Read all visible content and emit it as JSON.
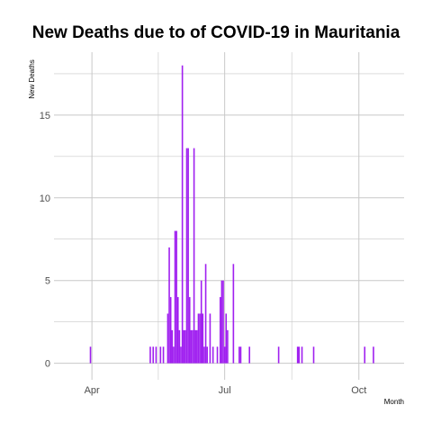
{
  "chart_data": {
    "type": "bar",
    "title": "New Deaths due to of COVID-19 in Mauritania",
    "xlabel": "Month",
    "ylabel": "New  Deaths",
    "x_ticks": [
      {
        "date": "2020-04-01",
        "label": "Apr"
      },
      {
        "date": "2020-07-01",
        "label": "Jul"
      },
      {
        "date": "2020-10-01",
        "label": "Oct"
      }
    ],
    "y_ticks": [
      0,
      5,
      10,
      15
    ],
    "xlim": [
      "2020-03-06",
      "2020-11-01"
    ],
    "ylim": [
      -1,
      18.8
    ],
    "grid": true,
    "bar_color": "#a020f0",
    "grid_color": "#c8c8c8",
    "series": [
      {
        "x": [
          "2020-03-31",
          "2020-05-11",
          "2020-05-13",
          "2020-05-15",
          "2020-05-18",
          "2020-05-20",
          "2020-05-23",
          "2020-05-24",
          "2020-05-25",
          "2020-05-26",
          "2020-05-27",
          "2020-05-28",
          "2020-05-29",
          "2020-05-30",
          "2020-05-31",
          "2020-06-01",
          "2020-06-02",
          "2020-06-03",
          "2020-06-04",
          "2020-06-05",
          "2020-06-06",
          "2020-06-07",
          "2020-06-08",
          "2020-06-09",
          "2020-06-10",
          "2020-06-11",
          "2020-06-12",
          "2020-06-13",
          "2020-06-14",
          "2020-06-15",
          "2020-06-16",
          "2020-06-17",
          "2020-06-18",
          "2020-06-19",
          "2020-06-21",
          "2020-06-23",
          "2020-06-26",
          "2020-06-28",
          "2020-06-29",
          "2020-06-30",
          "2020-07-01",
          "2020-07-02",
          "2020-07-03",
          "2020-07-07",
          "2020-07-11",
          "2020-07-12",
          "2020-07-18",
          "2020-08-07",
          "2020-08-20",
          "2020-08-21",
          "2020-08-23",
          "2020-08-31",
          "2020-10-05",
          "2020-10-11"
        ],
        "values": [
          1,
          1,
          1,
          1,
          1,
          1,
          3,
          7,
          4,
          2,
          1,
          8,
          8,
          4,
          2,
          1,
          18,
          2,
          2,
          13,
          13,
          4,
          2,
          2,
          13,
          2,
          2,
          3,
          3,
          5,
          3,
          1,
          6,
          1,
          3,
          1,
          1,
          4,
          5,
          5,
          1,
          3,
          2,
          6,
          1,
          1,
          1,
          1,
          1,
          1,
          1,
          1,
          1,
          1
        ]
      }
    ]
  }
}
